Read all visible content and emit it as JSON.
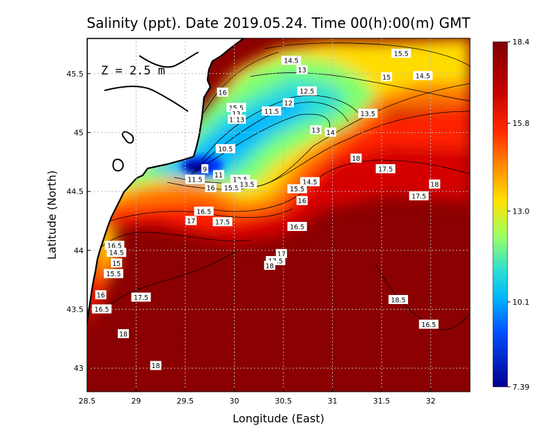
{
  "title": "Salinity (ppt). Date 2019.05.24. Time 00(h):00(m) GMT",
  "depth_label": "Z = 2.5 m",
  "xlabel": "Longitude (East)",
  "ylabel": "Latitude (North)",
  "colors": {
    "land": "#ffffff",
    "coast": "#000000",
    "grid": "#b8b8b8",
    "dark_red": "#8b0000",
    "dark_blue": "#00008f"
  },
  "chart_data": {
    "type": "heatmap",
    "x_axis": {
      "range": [
        28.5,
        32.4
      ],
      "ticks": [
        "28.5",
        "29",
        "29.5",
        "30",
        "30.5",
        "31",
        "31.5",
        "32"
      ],
      "tick_values": [
        28.5,
        29,
        29.5,
        30,
        30.5,
        31,
        31.5,
        32
      ]
    },
    "y_axis": {
      "range": [
        42.8,
        45.8
      ],
      "ticks": [
        "43",
        "43.5",
        "44",
        "44.5",
        "45",
        "45.5"
      ],
      "tick_values": [
        43,
        43.5,
        44,
        44.5,
        45,
        45.5
      ]
    },
    "colorbar": {
      "min": 7.39,
      "max": 18.4,
      "ticks": [
        "18.4",
        "15.8",
        "13.0",
        "10.1",
        "7.39"
      ],
      "tick_values": [
        18.4,
        15.8,
        13.0,
        10.1,
        7.39
      ]
    },
    "grid": true,
    "contour_labels": [
      {
        "text": "15.5",
        "lon": 31.7,
        "lat": 45.67
      },
      {
        "text": "14.5",
        "lon": 30.58,
        "lat": 45.61
      },
      {
        "text": "14.5",
        "lon": 31.92,
        "lat": 45.48
      },
      {
        "text": "13",
        "lon": 30.69,
        "lat": 45.53
      },
      {
        "text": "15",
        "lon": 31.55,
        "lat": 45.47
      },
      {
        "text": "16",
        "lon": 29.88,
        "lat": 45.34
      },
      {
        "text": "12.5",
        "lon": 30.74,
        "lat": 45.35
      },
      {
        "text": "15.5",
        "lon": 30.02,
        "lat": 45.21
      },
      {
        "text": "12",
        "lon": 30.55,
        "lat": 45.25
      },
      {
        "text": "11.5",
        "lon": 30.38,
        "lat": 45.18
      },
      {
        "text": "13",
        "lon": 30.02,
        "lat": 45.16
      },
      {
        "text": "11",
        "lon": 29.99,
        "lat": 45.11
      },
      {
        "text": "13",
        "lon": 30.06,
        "lat": 45.11
      },
      {
        "text": "13.5",
        "lon": 31.36,
        "lat": 45.16
      },
      {
        "text": "13",
        "lon": 30.83,
        "lat": 45.02
      },
      {
        "text": "14",
        "lon": 30.98,
        "lat": 45.0
      },
      {
        "text": "10.5",
        "lon": 29.91,
        "lat": 44.86
      },
      {
        "text": "18",
        "lon": 31.24,
        "lat": 44.78
      },
      {
        "text": "17.5",
        "lon": 31.54,
        "lat": 44.69
      },
      {
        "text": "9",
        "lon": 29.7,
        "lat": 44.69
      },
      {
        "text": "11",
        "lon": 29.84,
        "lat": 44.64
      },
      {
        "text": "11.5",
        "lon": 29.6,
        "lat": 44.6
      },
      {
        "text": "12.5",
        "lon": 30.06,
        "lat": 44.6
      },
      {
        "text": "14.5",
        "lon": 30.77,
        "lat": 44.58
      },
      {
        "text": "16",
        "lon": 29.76,
        "lat": 44.53
      },
      {
        "text": "15.5",
        "lon": 29.97,
        "lat": 44.53
      },
      {
        "text": "13.5",
        "lon": 30.13,
        "lat": 44.56
      },
      {
        "text": "15.5",
        "lon": 30.64,
        "lat": 44.52
      },
      {
        "text": "18",
        "lon": 32.04,
        "lat": 44.56
      },
      {
        "text": "17.5",
        "lon": 31.88,
        "lat": 44.46
      },
      {
        "text": "16",
        "lon": 30.69,
        "lat": 44.42
      },
      {
        "text": "16.5",
        "lon": 29.69,
        "lat": 44.33
      },
      {
        "text": "17",
        "lon": 29.56,
        "lat": 44.25
      },
      {
        "text": "17.5",
        "lon": 29.88,
        "lat": 44.24
      },
      {
        "text": "16.5",
        "lon": 30.64,
        "lat": 44.2
      },
      {
        "text": "16.5",
        "lon": 28.78,
        "lat": 44.04
      },
      {
        "text": "14.5",
        "lon": 28.8,
        "lat": 43.98
      },
      {
        "text": "15",
        "lon": 28.8,
        "lat": 43.89
      },
      {
        "text": "17",
        "lon": 30.48,
        "lat": 43.97
      },
      {
        "text": "17.5",
        "lon": 30.42,
        "lat": 43.91
      },
      {
        "text": "18",
        "lon": 30.36,
        "lat": 43.87
      },
      {
        "text": "15.5",
        "lon": 28.77,
        "lat": 43.8
      },
      {
        "text": "16",
        "lon": 28.64,
        "lat": 43.62
      },
      {
        "text": "17.5",
        "lon": 29.05,
        "lat": 43.6
      },
      {
        "text": "18.5",
        "lon": 31.67,
        "lat": 43.58
      },
      {
        "text": "16.5",
        "lon": 28.65,
        "lat": 43.5
      },
      {
        "text": "16.5",
        "lon": 31.98,
        "lat": 43.37
      },
      {
        "text": "18",
        "lon": 28.87,
        "lat": 43.29
      },
      {
        "text": "18",
        "lon": 29.2,
        "lat": 43.02
      }
    ]
  }
}
